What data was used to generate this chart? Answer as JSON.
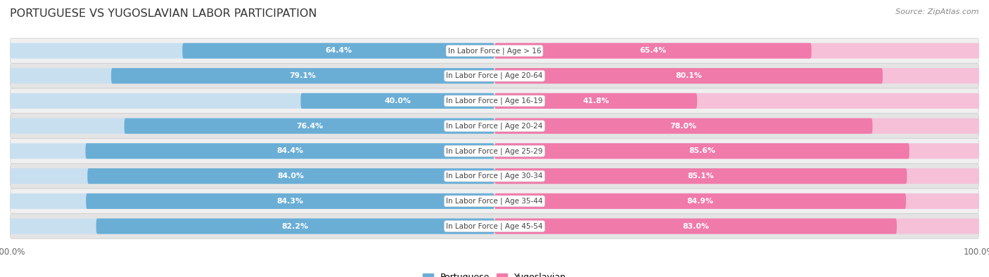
{
  "title": "PORTUGUESE VS YUGOSLAVIAN LABOR PARTICIPATION",
  "source": "Source: ZipAtlas.com",
  "categories": [
    "In Labor Force | Age > 16",
    "In Labor Force | Age 20-64",
    "In Labor Force | Age 16-19",
    "In Labor Force | Age 20-24",
    "In Labor Force | Age 25-29",
    "In Labor Force | Age 30-34",
    "In Labor Force | Age 35-44",
    "In Labor Force | Age 45-54"
  ],
  "portuguese_values": [
    64.4,
    79.1,
    40.0,
    76.4,
    84.4,
    84.0,
    84.3,
    82.2
  ],
  "yugoslavian_values": [
    65.4,
    80.1,
    41.8,
    78.0,
    85.6,
    85.1,
    84.9,
    83.0
  ],
  "portuguese_color": "#6aaed6",
  "portuguese_light_color": "#c8dff0",
  "yugoslavian_color": "#f07aaa",
  "yugoslavian_light_color": "#f5c0d8",
  "bg_color": "#ffffff",
  "row_odd_color": "#f5f5f5",
  "row_even_color": "#e8e8e8",
  "max_value": 100.0,
  "bar_height": 0.62,
  "legend_labels": [
    "Portuguese",
    "Yugoslavian"
  ]
}
